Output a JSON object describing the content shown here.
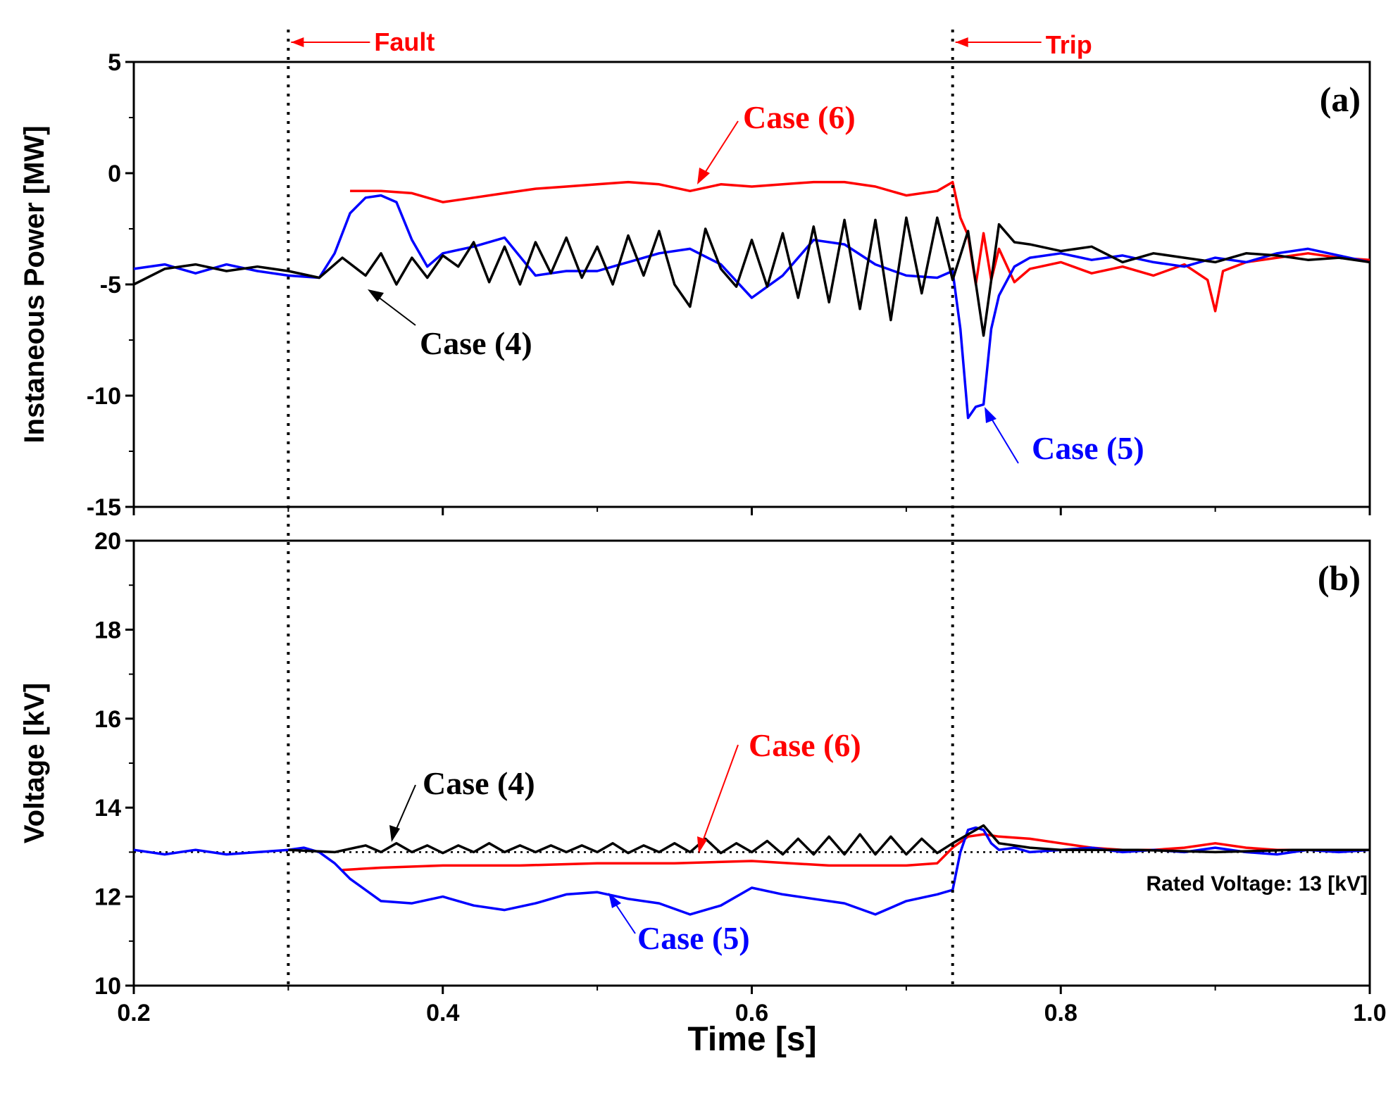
{
  "chart_data": [
    {
      "type": "line",
      "panel_label": "(a)",
      "ylabel": "Instaneous Power [MW]",
      "xlabel": "",
      "xlim": [
        0.2,
        1.0
      ],
      "ylim": [
        -15,
        5
      ],
      "yticks": [
        "5",
        "0",
        "-5",
        "-10",
        "-15"
      ],
      "ytick_values": [
        5,
        0,
        -5,
        -10,
        -15
      ],
      "series": [
        {
          "name": "Case (4)",
          "color": "#000000",
          "x": [
            0.2,
            0.22,
            0.24,
            0.26,
            0.28,
            0.3,
            0.32,
            0.335,
            0.35,
            0.36,
            0.37,
            0.38,
            0.39,
            0.4,
            0.41,
            0.42,
            0.43,
            0.44,
            0.45,
            0.46,
            0.47,
            0.48,
            0.49,
            0.5,
            0.51,
            0.52,
            0.53,
            0.54,
            0.55,
            0.56,
            0.57,
            0.58,
            0.59,
            0.6,
            0.61,
            0.62,
            0.63,
            0.64,
            0.65,
            0.66,
            0.67,
            0.68,
            0.69,
            0.7,
            0.71,
            0.72,
            0.73,
            0.74,
            0.75,
            0.76,
            0.77,
            0.78,
            0.8,
            0.82,
            0.84,
            0.86,
            0.88,
            0.9,
            0.92,
            0.94,
            0.96,
            0.98,
            1.0
          ],
          "y": [
            -5.0,
            -4.3,
            -4.1,
            -4.4,
            -4.2,
            -4.4,
            -4.7,
            -3.8,
            -4.6,
            -3.6,
            -5.0,
            -3.8,
            -4.7,
            -3.7,
            -4.2,
            -3.1,
            -4.9,
            -3.3,
            -5.0,
            -3.1,
            -4.5,
            -2.9,
            -4.7,
            -3.3,
            -5.0,
            -2.8,
            -4.6,
            -2.6,
            -5.0,
            -6.0,
            -2.5,
            -4.3,
            -5.1,
            -3.0,
            -5.1,
            -2.7,
            -5.6,
            -2.4,
            -5.8,
            -2.1,
            -6.1,
            -2.1,
            -6.6,
            -2.0,
            -5.4,
            -2.0,
            -4.8,
            -2.6,
            -7.3,
            -2.3,
            -3.1,
            -3.2,
            -3.5,
            -3.3,
            -4.0,
            -3.6,
            -3.8,
            -4.0,
            -3.6,
            -3.7,
            -3.9,
            -3.8,
            -4.0
          ]
        },
        {
          "name": "Case (5)",
          "color": "#0000ff",
          "x": [
            0.2,
            0.22,
            0.24,
            0.26,
            0.28,
            0.3,
            0.32,
            0.33,
            0.34,
            0.35,
            0.36,
            0.37,
            0.38,
            0.39,
            0.4,
            0.42,
            0.44,
            0.46,
            0.48,
            0.5,
            0.52,
            0.54,
            0.56,
            0.58,
            0.6,
            0.62,
            0.64,
            0.66,
            0.68,
            0.7,
            0.72,
            0.73,
            0.735,
            0.74,
            0.745,
            0.75,
            0.755,
            0.76,
            0.77,
            0.78,
            0.8,
            0.82,
            0.84,
            0.86,
            0.88,
            0.9,
            0.92,
            0.94,
            0.96,
            0.98,
            1.0
          ],
          "y": [
            -4.3,
            -4.1,
            -4.5,
            -4.1,
            -4.4,
            -4.6,
            -4.7,
            -3.6,
            -1.8,
            -1.1,
            -1.0,
            -1.3,
            -3.0,
            -4.2,
            -3.6,
            -3.3,
            -2.9,
            -4.6,
            -4.4,
            -4.4,
            -4.0,
            -3.6,
            -3.4,
            -4.1,
            -5.6,
            -4.6,
            -3.0,
            -3.2,
            -4.1,
            -4.6,
            -4.7,
            -4.4,
            -7.0,
            -11.0,
            -10.5,
            -10.4,
            -7.0,
            -5.5,
            -4.2,
            -3.8,
            -3.6,
            -3.9,
            -3.7,
            -4.0,
            -4.2,
            -3.8,
            -4.0,
            -3.6,
            -3.4,
            -3.7,
            -4.0
          ]
        },
        {
          "name": "Case (6)",
          "color": "#ff0000",
          "x": [
            0.34,
            0.36,
            0.38,
            0.4,
            0.42,
            0.44,
            0.46,
            0.48,
            0.5,
            0.52,
            0.54,
            0.56,
            0.58,
            0.6,
            0.62,
            0.64,
            0.66,
            0.68,
            0.7,
            0.72,
            0.73,
            0.735,
            0.74,
            0.745,
            0.75,
            0.755,
            0.76,
            0.77,
            0.78,
            0.8,
            0.82,
            0.84,
            0.86,
            0.88,
            0.895,
            0.9,
            0.905,
            0.92,
            0.94,
            0.96,
            0.98,
            1.0
          ],
          "y": [
            -0.8,
            -0.8,
            -0.9,
            -1.3,
            -1.1,
            -0.9,
            -0.7,
            -0.6,
            -0.5,
            -0.4,
            -0.5,
            -0.8,
            -0.5,
            -0.6,
            -0.5,
            -0.4,
            -0.4,
            -0.6,
            -1.0,
            -0.8,
            -0.4,
            -2.0,
            -2.8,
            -5.0,
            -2.7,
            -4.8,
            -3.4,
            -4.9,
            -4.3,
            -4.0,
            -4.5,
            -4.2,
            -4.6,
            -4.1,
            -4.8,
            -6.2,
            -4.4,
            -4.0,
            -3.8,
            -3.6,
            -3.8,
            -3.9
          ]
        }
      ],
      "annotations": [
        {
          "text": "Case (6)",
          "color": "#ff0000"
        },
        {
          "text": "Case (4)",
          "color": "#000000"
        },
        {
          "text": "Case (5)",
          "color": "#0000ff"
        }
      ]
    },
    {
      "type": "line",
      "panel_label": "(b)",
      "ylabel": "Voltage [kV]",
      "xlabel": "Time [s]",
      "xlim": [
        0.2,
        1.0
      ],
      "ylim": [
        10,
        20
      ],
      "xticks": [
        "0.2",
        "0.4",
        "0.6",
        "0.8",
        "1.0"
      ],
      "xtick_values": [
        0.2,
        0.4,
        0.6,
        0.8,
        1.0
      ],
      "yticks": [
        "20",
        "18",
        "16",
        "14",
        "12",
        "10"
      ],
      "ytick_values": [
        20,
        18,
        16,
        14,
        12,
        10
      ],
      "rated_voltage": 13,
      "rated_voltage_label": "Rated Voltage: 13 [kV]",
      "series": [
        {
          "name": "Case (4)",
          "color": "#000000",
          "x": [
            0.3,
            0.33,
            0.35,
            0.36,
            0.37,
            0.38,
            0.39,
            0.4,
            0.41,
            0.42,
            0.43,
            0.44,
            0.45,
            0.46,
            0.47,
            0.48,
            0.49,
            0.5,
            0.51,
            0.52,
            0.53,
            0.54,
            0.55,
            0.56,
            0.57,
            0.58,
            0.59,
            0.6,
            0.61,
            0.62,
            0.63,
            0.64,
            0.65,
            0.66,
            0.67,
            0.68,
            0.69,
            0.7,
            0.71,
            0.72,
            0.73,
            0.74,
            0.75,
            0.76,
            0.77,
            0.78,
            0.8,
            0.85,
            0.9,
            0.95,
            1.0
          ],
          "y": [
            13.05,
            13.0,
            13.15,
            13.0,
            13.2,
            13.0,
            13.15,
            12.98,
            13.15,
            13.0,
            13.2,
            13.0,
            13.15,
            13.0,
            13.15,
            13.0,
            13.15,
            13.0,
            13.2,
            12.98,
            13.15,
            13.0,
            13.2,
            13.0,
            13.3,
            12.98,
            13.2,
            13.0,
            13.25,
            12.95,
            13.3,
            12.95,
            13.35,
            12.95,
            13.4,
            12.95,
            13.35,
            12.95,
            13.3,
            12.98,
            13.2,
            13.4,
            13.6,
            13.2,
            13.15,
            13.1,
            13.05,
            13.05,
            13.0,
            13.05,
            13.05
          ]
        },
        {
          "name": "Case (5)",
          "color": "#0000ff",
          "x": [
            0.2,
            0.22,
            0.24,
            0.26,
            0.28,
            0.3,
            0.31,
            0.32,
            0.33,
            0.34,
            0.36,
            0.38,
            0.4,
            0.42,
            0.44,
            0.46,
            0.48,
            0.5,
            0.52,
            0.54,
            0.56,
            0.58,
            0.6,
            0.62,
            0.64,
            0.66,
            0.68,
            0.7,
            0.72,
            0.73,
            0.735,
            0.74,
            0.745,
            0.75,
            0.755,
            0.76,
            0.77,
            0.78,
            0.8,
            0.82,
            0.84,
            0.86,
            0.88,
            0.9,
            0.92,
            0.94,
            0.96,
            0.98,
            1.0
          ],
          "y": [
            13.05,
            12.95,
            13.05,
            12.95,
            13.0,
            13.05,
            13.1,
            13.0,
            12.75,
            12.4,
            11.9,
            11.85,
            12.0,
            11.8,
            11.7,
            11.85,
            12.05,
            12.1,
            11.95,
            11.85,
            11.6,
            11.8,
            12.2,
            12.05,
            11.95,
            11.85,
            11.6,
            11.9,
            12.05,
            12.15,
            13.0,
            13.5,
            13.55,
            13.5,
            13.2,
            13.05,
            13.1,
            13.0,
            13.05,
            13.1,
            13.0,
            13.05,
            13.0,
            13.1,
            13.0,
            12.95,
            13.05,
            13.0,
            13.05
          ]
        },
        {
          "name": "Case (6)",
          "color": "#ff0000",
          "x": [
            0.335,
            0.36,
            0.4,
            0.45,
            0.5,
            0.55,
            0.6,
            0.65,
            0.7,
            0.72,
            0.73,
            0.74,
            0.75,
            0.76,
            0.78,
            0.8,
            0.82,
            0.84,
            0.86,
            0.88,
            0.9,
            0.92,
            0.94,
            0.96,
            0.98,
            1.0
          ],
          "y": [
            12.6,
            12.65,
            12.7,
            12.7,
            12.75,
            12.75,
            12.8,
            12.7,
            12.7,
            12.75,
            13.1,
            13.35,
            13.4,
            13.35,
            13.3,
            13.2,
            13.1,
            13.05,
            13.05,
            13.1,
            13.2,
            13.1,
            13.05,
            13.05,
            13.05,
            13.05
          ]
        }
      ],
      "annotations": [
        {
          "text": "Case (6)",
          "color": "#ff0000"
        },
        {
          "text": "Case (4)",
          "color": "#000000"
        },
        {
          "text": "Case (5)",
          "color": "#0000ff"
        }
      ]
    }
  ],
  "events": [
    {
      "name": "Fault",
      "time": 0.3
    },
    {
      "name": "Trip",
      "time": 0.73
    }
  ]
}
